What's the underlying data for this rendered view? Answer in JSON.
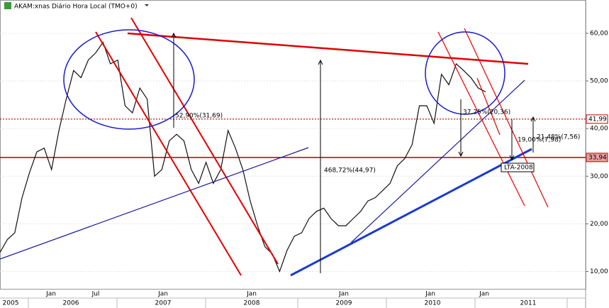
{
  "chart_data": {
    "type": "line",
    "title": "AKAM:xnas Diário Hora Local (TMO+0)",
    "color": "#111111",
    "values": [
      14.0,
      16.7,
      18.1,
      25.5,
      30.7,
      35.1,
      35.9,
      31.4,
      39.5,
      46.2,
      52.2,
      50.7,
      54.4,
      55.9,
      58.1,
      53.6,
      54.4,
      44.8,
      43.3,
      48.5,
      46.2,
      30.0,
      31.4,
      37.4,
      38.8,
      37.4,
      31.4,
      28.5,
      32.9,
      28.5,
      31.4,
      39.6,
      35.9,
      31.4,
      24.8,
      19.6,
      15.2,
      13.7,
      10.0,
      14.4,
      17.4,
      18.1,
      21.1,
      22.6,
      23.3,
      21.1,
      19.6,
      19.6,
      21.1,
      22.6,
      24.8,
      25.5,
      27.0,
      28.5,
      32.2,
      33.7,
      36.6,
      44.8,
      44.8,
      41.1,
      51.4,
      49.2,
      53.6,
      52.2,
      50.7,
      48.5,
      47.7
    ],
    "ylim": [
      6.2,
      67
    ],
    "yticks": [
      {
        "value": 10,
        "label": "10,00"
      },
      {
        "value": 20,
        "label": "20,00"
      },
      {
        "value": 30,
        "label": "30,00"
      },
      {
        "value": 40,
        "label": "40,00"
      },
      {
        "value": 50,
        "label": "50,00"
      },
      {
        "value": 60,
        "label": "60,00"
      }
    ],
    "grid": true,
    "month_labels": [
      "Jan",
      "Jul",
      "Jan",
      "Jan",
      "Jan",
      "Jan",
      "Jan"
    ],
    "year_labels": [
      "2005",
      "2006",
      "2007",
      "2008",
      "2009",
      "2010",
      "2011"
    ],
    "levels": [
      {
        "value": 41.99,
        "label": "41,99",
        "style": "dotted"
      },
      {
        "value": 33.94,
        "label": "33,94",
        "style": "solid"
      }
    ],
    "annotations": [
      "52,90%(31,69)",
      "468,72%(44,97)",
      "37,25%(20,36)",
      "19,00%(7,98)",
      "21,48%(7,56)",
      "LTA-2008"
    ]
  }
}
